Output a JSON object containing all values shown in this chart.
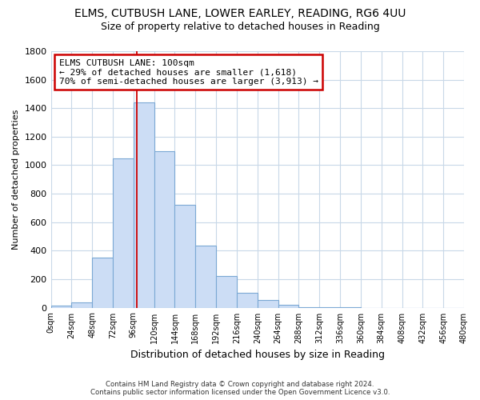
{
  "title": "ELMS, CUTBUSH LANE, LOWER EARLEY, READING, RG6 4UU",
  "subtitle": "Size of property relative to detached houses in Reading",
  "xlabel": "Distribution of detached houses by size in Reading",
  "ylabel": "Number of detached properties",
  "bar_color": "#ccddf5",
  "bar_edge_color": "#7ba8d4",
  "vline_x": 100,
  "vline_color": "#cc0000",
  "bin_edges": [
    0,
    24,
    48,
    72,
    96,
    120,
    144,
    168,
    192,
    216,
    240,
    264,
    288,
    312,
    336,
    360,
    384,
    408,
    432,
    456,
    480
  ],
  "bar_heights": [
    15,
    35,
    350,
    1050,
    1440,
    1100,
    720,
    435,
    220,
    105,
    55,
    20,
    5,
    2,
    1,
    0,
    0,
    0,
    0,
    0
  ],
  "tick_labels": [
    "0sqm",
    "24sqm",
    "48sqm",
    "72sqm",
    "96sqm",
    "120sqm",
    "144sqm",
    "168sqm",
    "192sqm",
    "216sqm",
    "240sqm",
    "264sqm",
    "288sqm",
    "312sqm",
    "336sqm",
    "360sqm",
    "384sqm",
    "408sqm",
    "432sqm",
    "456sqm",
    "480sqm"
  ],
  "annotation_title": "ELMS CUTBUSH LANE: 100sqm",
  "annotation_line1": "← 29% of detached houses are smaller (1,618)",
  "annotation_line2": "70% of semi-detached houses are larger (3,913) →",
  "annotation_box_color": "white",
  "annotation_box_edge_color": "#cc0000",
  "ylim": [
    0,
    1800
  ],
  "yticks": [
    0,
    200,
    400,
    600,
    800,
    1000,
    1200,
    1400,
    1600,
    1800
  ],
  "footer_line1": "Contains HM Land Registry data © Crown copyright and database right 2024.",
  "footer_line2": "Contains public sector information licensed under the Open Government Licence v3.0.",
  "bg_color": "#ffffff",
  "grid_color": "#c8d8e8"
}
